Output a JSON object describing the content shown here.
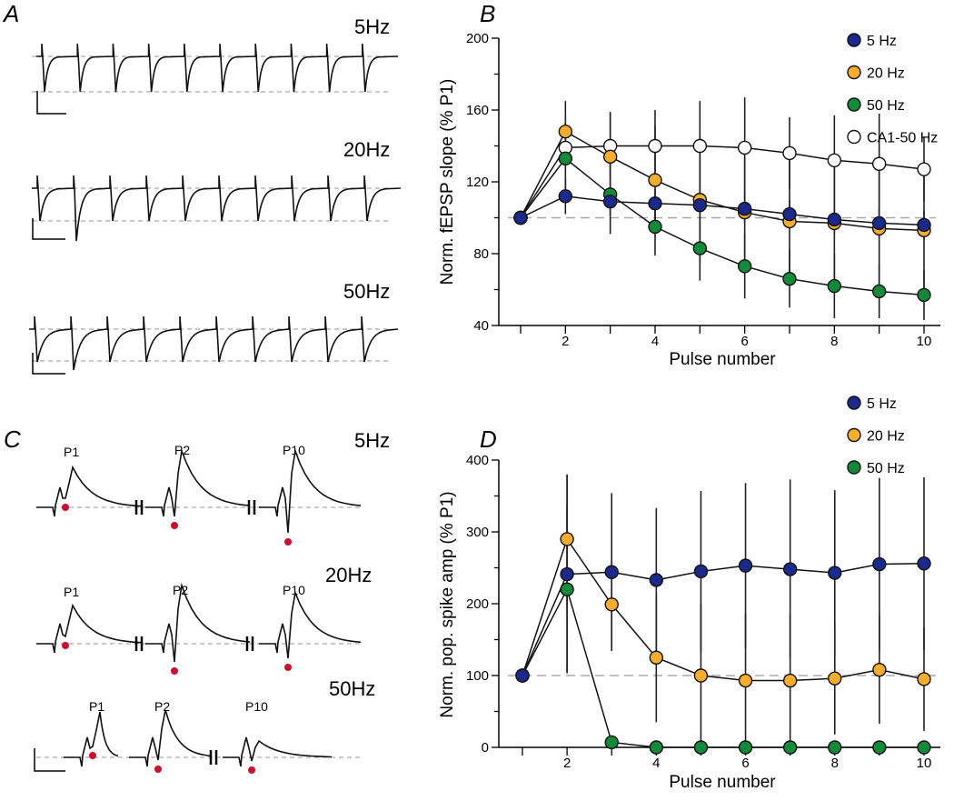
{
  "panels": {
    "a": "A",
    "b": "B",
    "c": "C",
    "d": "D"
  },
  "panel_a": {
    "rows": [
      "5Hz",
      "20Hz",
      "50Hz"
    ]
  },
  "panel_c": {
    "rows": [
      "5Hz",
      "20Hz",
      "50Hz"
    ],
    "pulse_labels": [
      "P1",
      "P2",
      "P10"
    ]
  },
  "colors": {
    "5 Hz": "#1b2a8a",
    "20 Hz": "#f8ad2d",
    "50 Hz": "#138a3a",
    "CA1-50 Hz": "#ffffff",
    "spike_marker": "#c8102e"
  },
  "chart_data": [
    {
      "type": "line",
      "panel": "B",
      "xlabel": "Pulse number",
      "ylabel": "Norm. fEPSP slope (% P1)",
      "x": [
        1,
        2,
        3,
        4,
        5,
        6,
        7,
        8,
        9,
        10
      ],
      "xticks": [
        2,
        4,
        6,
        8,
        10
      ],
      "yticks": [
        40,
        80,
        120,
        160,
        200
      ],
      "ylim": [
        40,
        200
      ],
      "reference_line": 100,
      "legend_position": "top-right",
      "series": [
        {
          "name": "5 Hz",
          "values": [
            100,
            112,
            109,
            108,
            107,
            105,
            102,
            99,
            97,
            96
          ],
          "error": [
            0,
            10,
            8,
            8,
            8,
            8,
            8,
            8,
            8,
            8
          ]
        },
        {
          "name": "20 Hz",
          "values": [
            100,
            148,
            134,
            121,
            110,
            103,
            98,
            97,
            94,
            93
          ],
          "error": [
            0,
            17,
            25,
            30,
            35,
            35,
            35,
            35,
            35,
            35
          ]
        },
        {
          "name": "50 Hz",
          "values": [
            100,
            133,
            113,
            95,
            83,
            73,
            66,
            62,
            59,
            57
          ],
          "error": [
            0,
            20,
            22,
            16,
            18,
            18,
            16,
            18,
            15,
            14
          ]
        },
        {
          "name": "CA1-50 Hz",
          "values": [
            100,
            139,
            140,
            140,
            140,
            139,
            136,
            132,
            130,
            127
          ],
          "error": [
            0,
            0,
            18,
            20,
            25,
            28,
            20,
            25,
            28,
            18
          ]
        }
      ]
    },
    {
      "type": "line",
      "panel": "D",
      "xlabel": "Pulse number",
      "ylabel": "Norm. pop. spike amp (% P1)",
      "x": [
        1,
        2,
        3,
        4,
        5,
        6,
        7,
        8,
        9,
        10
      ],
      "xticks": [
        2,
        4,
        6,
        8,
        10
      ],
      "yticks": [
        0,
        100,
        200,
        300,
        400
      ],
      "ylim": [
        0,
        400
      ],
      "reference_line": 100,
      "legend_position": "top-right",
      "series": [
        {
          "name": "5 Hz",
          "values": [
            100,
            241,
            244,
            233,
            245,
            253,
            248,
            243,
            255,
            256
          ],
          "error": [
            0,
            138,
            110,
            100,
            112,
            115,
            125,
            115,
            120,
            120
          ]
        },
        {
          "name": "20 Hz",
          "values": [
            100,
            290,
            199,
            125,
            100,
            93,
            93,
            96,
            108,
            95
          ],
          "error": [
            0,
            90,
            60,
            90,
            100,
            93,
            93,
            78,
            75,
            72
          ]
        },
        {
          "name": "50 Hz",
          "values": [
            100,
            220,
            7,
            0,
            0,
            0,
            0,
            0,
            0,
            0
          ],
          "error": [
            0,
            115,
            5,
            0,
            0,
            0,
            0,
            0,
            0,
            0
          ]
        }
      ]
    }
  ]
}
